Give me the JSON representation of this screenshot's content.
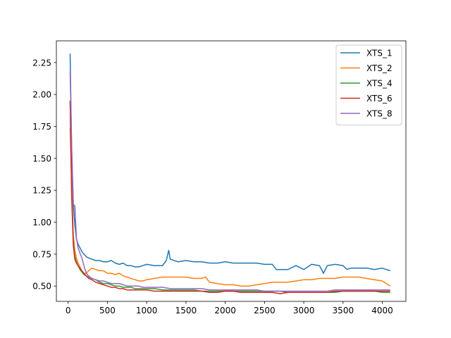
{
  "chart_data": {
    "type": "line",
    "title": "",
    "xlabel": "",
    "ylabel": "",
    "xlim": [
      -150,
      4300
    ],
    "ylim": [
      0.38,
      2.42
    ],
    "xticks": [
      0,
      500,
      1000,
      1500,
      2000,
      2500,
      3000,
      3500,
      4000
    ],
    "yticks": [
      0.5,
      0.75,
      1.0,
      1.25,
      1.5,
      1.75,
      2.0,
      2.25
    ],
    "ytick_labels": [
      "0.50",
      "0.75",
      "1.00",
      "1.25",
      "1.50",
      "1.75",
      "2.00",
      "2.25"
    ],
    "grid": false,
    "legend_position": "top-right",
    "series": [
      {
        "name": "XTS_1",
        "color": "#1f77b4",
        "x": [
          25,
          45,
          65,
          85,
          105,
          125,
          150,
          175,
          200,
          230,
          260,
          300,
          350,
          400,
          450,
          500,
          550,
          600,
          650,
          700,
          750,
          800,
          850,
          900,
          950,
          1000,
          1100,
          1200,
          1250,
          1280,
          1300,
          1400,
          1500,
          1600,
          1700,
          1800,
          1900,
          2000,
          2100,
          2200,
          2300,
          2400,
          2500,
          2600,
          2650,
          2700,
          2800,
          2900,
          3000,
          3100,
          3200,
          3250,
          3300,
          3400,
          3500,
          3550,
          3600,
          3700,
          3800,
          3900,
          4000,
          4050,
          4100
        ],
        "y": [
          2.32,
          1.55,
          1.15,
          0.98,
          0.87,
          0.83,
          0.8,
          0.77,
          0.75,
          0.73,
          0.72,
          0.71,
          0.7,
          0.7,
          0.69,
          0.69,
          0.7,
          0.68,
          0.67,
          0.68,
          0.66,
          0.66,
          0.65,
          0.65,
          0.66,
          0.67,
          0.66,
          0.66,
          0.7,
          0.78,
          0.71,
          0.69,
          0.7,
          0.69,
          0.69,
          0.68,
          0.68,
          0.69,
          0.68,
          0.68,
          0.68,
          0.68,
          0.67,
          0.67,
          0.63,
          0.63,
          0.63,
          0.66,
          0.63,
          0.67,
          0.66,
          0.6,
          0.66,
          0.67,
          0.66,
          0.63,
          0.64,
          0.64,
          0.64,
          0.63,
          0.64,
          0.63,
          0.62
        ]
      },
      {
        "name": "XTS_2",
        "color": "#ff7f0e",
        "x": [
          25,
          45,
          65,
          85,
          105,
          125,
          150,
          175,
          200,
          230,
          260,
          300,
          350,
          400,
          450,
          500,
          550,
          600,
          650,
          700,
          750,
          800,
          850,
          900,
          950,
          1000,
          1100,
          1200,
          1300,
          1400,
          1500,
          1600,
          1700,
          1750,
          1800,
          1900,
          2000,
          2100,
          2200,
          2300,
          2400,
          2500,
          2600,
          2700,
          2800,
          2900,
          3000,
          3100,
          3200,
          3300,
          3400,
          3500,
          3600,
          3700,
          3800,
          3900,
          4000,
          4050,
          4100
        ],
        "y": [
          1.74,
          1.3,
          0.9,
          0.78,
          0.72,
          0.68,
          0.65,
          0.62,
          0.6,
          0.6,
          0.62,
          0.64,
          0.63,
          0.62,
          0.62,
          0.6,
          0.6,
          0.59,
          0.6,
          0.58,
          0.57,
          0.56,
          0.55,
          0.54,
          0.54,
          0.55,
          0.56,
          0.57,
          0.57,
          0.57,
          0.57,
          0.56,
          0.56,
          0.57,
          0.53,
          0.52,
          0.51,
          0.51,
          0.5,
          0.5,
          0.51,
          0.52,
          0.53,
          0.53,
          0.53,
          0.54,
          0.55,
          0.55,
          0.56,
          0.56,
          0.56,
          0.57,
          0.57,
          0.57,
          0.56,
          0.55,
          0.54,
          0.52,
          0.5
        ]
      },
      {
        "name": "XTS_4",
        "color": "#2ca02c",
        "x": [
          25,
          45,
          65,
          85,
          105,
          125,
          150,
          175,
          200,
          230,
          260,
          300,
          350,
          400,
          450,
          500,
          550,
          600,
          650,
          700,
          750,
          800,
          850,
          900,
          950,
          1000,
          1100,
          1200,
          1300,
          1400,
          1500,
          1600,
          1700,
          1800,
          1900,
          2000,
          2100,
          2200,
          2300,
          2400,
          2500,
          2600,
          2700,
          2800,
          2900,
          3000,
          3100,
          3200,
          3300,
          3400,
          3500,
          3600,
          3700,
          3800,
          3900,
          4000,
          4100
        ],
        "y": [
          1.95,
          1.25,
          0.85,
          0.73,
          0.69,
          0.66,
          0.63,
          0.61,
          0.59,
          0.58,
          0.57,
          0.56,
          0.55,
          0.53,
          0.52,
          0.52,
          0.51,
          0.5,
          0.5,
          0.49,
          0.49,
          0.49,
          0.48,
          0.48,
          0.48,
          0.48,
          0.48,
          0.47,
          0.47,
          0.47,
          0.47,
          0.47,
          0.46,
          0.46,
          0.46,
          0.46,
          0.46,
          0.46,
          0.46,
          0.46,
          0.46,
          0.46,
          0.46,
          0.45,
          0.45,
          0.45,
          0.45,
          0.45,
          0.45,
          0.45,
          0.46,
          0.46,
          0.46,
          0.46,
          0.46,
          0.45,
          0.45
        ]
      },
      {
        "name": "XTS_6",
        "color": "#d62728",
        "x": [
          25,
          45,
          65,
          85,
          105,
          125,
          150,
          175,
          200,
          230,
          260,
          300,
          350,
          400,
          450,
          500,
          550,
          600,
          650,
          700,
          750,
          800,
          850,
          900,
          950,
          1000,
          1100,
          1200,
          1300,
          1400,
          1500,
          1600,
          1700,
          1800,
          1900,
          2000,
          2100,
          2200,
          2300,
          2400,
          2500,
          2600,
          2700,
          2800,
          2900,
          3000,
          3100,
          3200,
          3300,
          3400,
          3500,
          3600,
          3700,
          3800,
          3900,
          4000,
          4100
        ],
        "y": [
          1.95,
          1.2,
          0.82,
          0.71,
          0.68,
          0.66,
          0.64,
          0.62,
          0.6,
          0.58,
          0.56,
          0.55,
          0.53,
          0.52,
          0.51,
          0.5,
          0.49,
          0.49,
          0.48,
          0.48,
          0.47,
          0.47,
          0.47,
          0.47,
          0.47,
          0.47,
          0.46,
          0.46,
          0.46,
          0.46,
          0.46,
          0.46,
          0.46,
          0.45,
          0.45,
          0.46,
          0.46,
          0.45,
          0.45,
          0.45,
          0.45,
          0.45,
          0.44,
          0.45,
          0.45,
          0.45,
          0.45,
          0.45,
          0.45,
          0.46,
          0.46,
          0.46,
          0.46,
          0.46,
          0.46,
          0.46,
          0.46
        ]
      },
      {
        "name": "XTS_8",
        "color": "#9467bd",
        "x": [
          25,
          45,
          65,
          85,
          105,
          125,
          150,
          175,
          200,
          230,
          260,
          300,
          350,
          400,
          450,
          500,
          550,
          600,
          650,
          700,
          750,
          800,
          850,
          900,
          950,
          1000,
          1100,
          1200,
          1300,
          1400,
          1500,
          1600,
          1700,
          1800,
          1900,
          2000,
          2100,
          2200,
          2300,
          2400,
          2500,
          2600,
          2700,
          2800,
          2900,
          3000,
          3100,
          3200,
          3300,
          3400,
          3500,
          3600,
          3700,
          3800,
          3900,
          4000,
          4100
        ],
        "y": [
          2.18,
          1.6,
          1.14,
          1.13,
          0.88,
          0.8,
          0.76,
          0.72,
          0.66,
          0.6,
          0.58,
          0.56,
          0.55,
          0.54,
          0.54,
          0.53,
          0.52,
          0.52,
          0.52,
          0.51,
          0.5,
          0.5,
          0.5,
          0.5,
          0.49,
          0.49,
          0.49,
          0.49,
          0.48,
          0.48,
          0.48,
          0.48,
          0.48,
          0.47,
          0.47,
          0.47,
          0.47,
          0.47,
          0.47,
          0.47,
          0.46,
          0.46,
          0.46,
          0.46,
          0.46,
          0.46,
          0.46,
          0.46,
          0.46,
          0.47,
          0.47,
          0.47,
          0.47,
          0.47,
          0.47,
          0.47,
          0.47
        ]
      }
    ]
  }
}
